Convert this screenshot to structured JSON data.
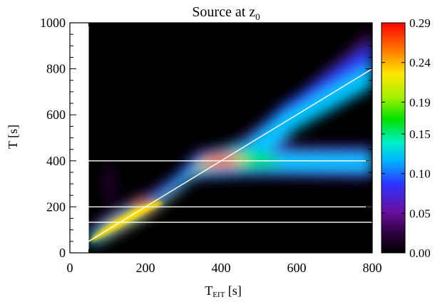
{
  "chart_data": {
    "type": "heatmap",
    "title_main": "Source at z",
    "title_sub": "0",
    "xlabel_main": "T",
    "xlabel_sub": "EIT",
    "xlabel_unit": " [s]",
    "ylabel": "T [s]",
    "xlim": [
      0,
      800
    ],
    "ylim": [
      0,
      1000
    ],
    "data_x_range": [
      50,
      800
    ],
    "x_ticks": [
      0,
      200,
      400,
      600,
      800
    ],
    "y_ticks": [
      0,
      200,
      400,
      600,
      800,
      1000
    ],
    "colorbar": {
      "colormap": "rainbow",
      "range": [
        0,
        0.29
      ],
      "tick_values": [
        0.0,
        0.05,
        0.1,
        0.15,
        0.19,
        0.24,
        0.29
      ],
      "tick_labels": [
        "0.00",
        "0.05",
        "0.10",
        "0.15",
        "0.19",
        "0.24",
        "0.29"
      ]
    },
    "overlay_lines": [
      {
        "kind": "diagonal",
        "from": [
          50,
          50
        ],
        "to": [
          800,
          800
        ],
        "color": "#ffffff"
      },
      {
        "kind": "horizontal",
        "y": 400,
        "color": "#ffffff"
      },
      {
        "kind": "horizontal",
        "y": 200,
        "color": "#ffffff"
      },
      {
        "kind": "horizontal",
        "y": 133,
        "color": "#ffffff"
      }
    ],
    "features": [
      {
        "name": "diagonal-ridge",
        "y_equals_x_until": 400
      },
      {
        "name": "peak",
        "x": 410,
        "y": 400,
        "value": 0.29
      },
      {
        "name": "horizontal-branch",
        "y": 400,
        "x_from": 420,
        "x_to": 800
      },
      {
        "name": "upper-branch",
        "from": [
          500,
          520
        ],
        "to": [
          800,
          860
        ]
      }
    ]
  }
}
